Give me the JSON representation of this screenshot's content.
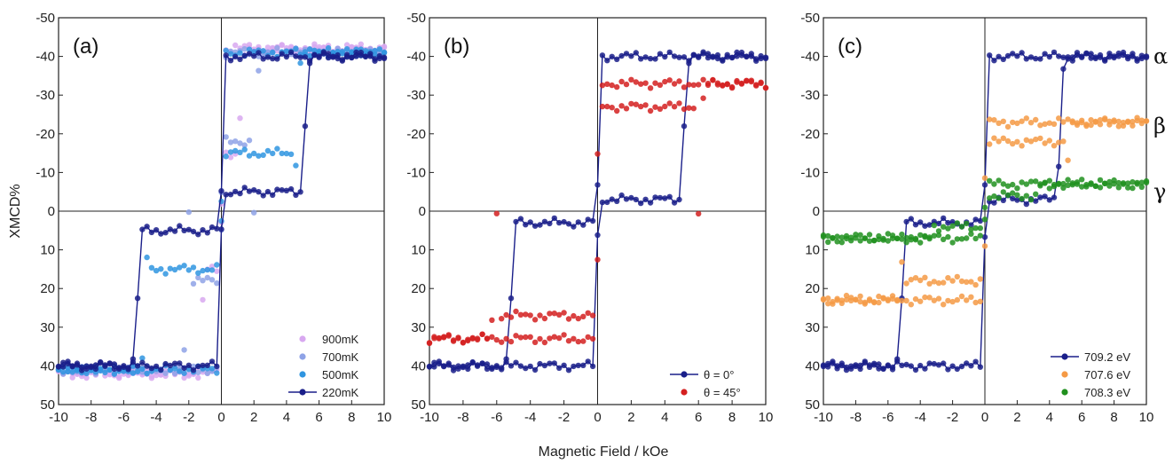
{
  "figure": {
    "ylabel": "XMCD%",
    "xlabel": "Magnetic Field / kOe"
  },
  "colors": {
    "navy": "#1a1f8a",
    "violet": "#d8a8f0",
    "periwinkle": "#8ea2e6",
    "skyblue": "#2f95e0",
    "red": "#d42020",
    "orange": "#f59a45",
    "green": "#20901e"
  },
  "chart_data": [
    {
      "type": "scatter",
      "panel_label": "(a)",
      "xlim": [
        -10,
        10
      ],
      "ylim": [
        50,
        -50
      ],
      "y_axis_inverted": true,
      "x_ticks": [
        "-10",
        "-8",
        "-6",
        "-4",
        "-2",
        "0",
        "2",
        "4",
        "6",
        "8",
        "10"
      ],
      "y_ticks": [
        "-50",
        "-40",
        "-30",
        "-20",
        "-10",
        "0",
        "10",
        "20",
        "30",
        "40",
        "50"
      ],
      "legend_position": "bottom-right",
      "grid": false,
      "series": [
        {
          "name": "900mK",
          "color": "#d8a8f0",
          "style": "markers",
          "loop": {
            "saturation": 42,
            "coercive_down": -1.0,
            "coercive_up": 1.0,
            "step_level": 15,
            "step_field": 2.5
          }
        },
        {
          "name": "700mK",
          "color": "#8ea2e6",
          "style": "markers",
          "loop": {
            "saturation": 41,
            "coercive_down": -2.0,
            "coercive_up": 2.0,
            "step_level": 18,
            "step_field": 3.0
          }
        },
        {
          "name": "500mK",
          "color": "#2f95e0",
          "style": "markers",
          "loop": {
            "saturation": 41,
            "coercive_down": -4.5,
            "coercive_up": 4.5,
            "step_level": 15,
            "step_field": 3.5
          }
        },
        {
          "name": "220mK",
          "color": "#1a1f8a",
          "style": "line+markers",
          "loop": {
            "saturation": 40,
            "coercive_down": -5.0,
            "coercive_up": 5.0,
            "step_level": 5,
            "step_field": 0.5
          }
        }
      ]
    },
    {
      "type": "scatter",
      "panel_label": "(b)",
      "xlim": [
        -10,
        10
      ],
      "ylim": [
        50,
        -50
      ],
      "y_axis_inverted": true,
      "x_ticks": [
        "-10",
        "-8",
        "-6",
        "-4",
        "-2",
        "0",
        "2",
        "4",
        "6",
        "8",
        "10"
      ],
      "y_ticks": [
        "-50",
        "-40",
        "-30",
        "-20",
        "-10",
        "0",
        "10",
        "20",
        "30",
        "40",
        "50"
      ],
      "legend_position": "bottom-right",
      "grid": false,
      "series": [
        {
          "name": "θ = 0°",
          "color": "#1a1f8a",
          "style": "line+markers",
          "loop": {
            "saturation": 40,
            "coercive_down": -5.0,
            "coercive_up": 5.0,
            "step_level": 3,
            "step_field": 0.5
          }
        },
        {
          "name": "θ = 45°",
          "color": "#d42020",
          "style": "markers",
          "loop": {
            "saturation": 33,
            "coercive_down": -6.0,
            "coercive_up": 6.0,
            "step_level": 27,
            "step_field": 2.5
          }
        }
      ]
    },
    {
      "type": "scatter",
      "panel_label": "(c)",
      "xlim": [
        -10,
        10
      ],
      "ylim": [
        50,
        -50
      ],
      "y_axis_inverted": true,
      "x_ticks": [
        "-10",
        "-8",
        "-6",
        "-4",
        "-2",
        "0",
        "2",
        "4",
        "6",
        "8",
        "10"
      ],
      "y_ticks": [
        "-50",
        "-40",
        "-30",
        "-20",
        "-10",
        "0",
        "10",
        "20",
        "30",
        "40",
        "50"
      ],
      "legend_position": "bottom-right",
      "grid": false,
      "annotations": [
        "α",
        "β",
        "γ"
      ],
      "series": [
        {
          "name": "709.2 eV",
          "color": "#1a1f8a",
          "style": "line+markers",
          "loop": {
            "saturation": 40,
            "coercive_down": -5.0,
            "coercive_up": 4.5,
            "step_level": 3,
            "step_field": 0.5
          }
        },
        {
          "name": "707.6 eV",
          "color": "#f59a45",
          "style": "markers",
          "loop": {
            "saturation": 23,
            "coercive_down": -5.0,
            "coercive_up": 5.0,
            "step_level": 18,
            "step_field": 2.0
          }
        },
        {
          "name": "708.3 eV",
          "color": "#20901e",
          "style": "markers",
          "loop": {
            "saturation": 7,
            "coercive_down": -3.0,
            "coercive_up": 3.0,
            "step_level": 4,
            "step_field": 1.0
          }
        }
      ]
    }
  ]
}
